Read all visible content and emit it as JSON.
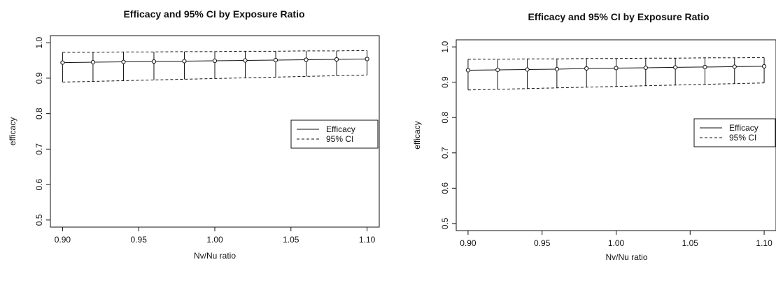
{
  "colors": {
    "ink": "#111111",
    "background": "#ffffff"
  },
  "chart_data": [
    {
      "type": "line",
      "title": "Efficacy and 95% CI by Exposure Ratio",
      "xlabel": "Nv/Nu ratio",
      "ylabel": "efficacy",
      "xlim": [
        0.9,
        1.1
      ],
      "ylim": [
        0.5,
        1.0
      ],
      "xticks": [
        "0.90",
        "0.95",
        "1.00",
        "1.05",
        "1.10"
      ],
      "yticks": [
        "0.5",
        "0.6",
        "0.7",
        "0.8",
        "0.9",
        "1.0"
      ],
      "x": [
        0.9,
        0.92,
        0.94,
        0.96,
        0.98,
        1.0,
        1.02,
        1.04,
        1.06,
        1.08,
        1.1
      ],
      "series": [
        {
          "name": "Efficacy",
          "style": "solid",
          "markers": true,
          "values": [
            0.944,
            0.945,
            0.946,
            0.947,
            0.948,
            0.949,
            0.95,
            0.951,
            0.952,
            0.953,
            0.954
          ]
        },
        {
          "name": "95% CI",
          "style": "dashed",
          "band": "upper",
          "values": [
            0.973,
            0.973,
            0.974,
            0.974,
            0.975,
            0.975,
            0.976,
            0.976,
            0.977,
            0.977,
            0.978
          ]
        },
        {
          "name": "95% CI",
          "style": "dashed",
          "band": "lower",
          "values": [
            0.889,
            0.891,
            0.893,
            0.895,
            0.897,
            0.899,
            0.901,
            0.903,
            0.905,
            0.907,
            0.909
          ]
        }
      ],
      "legend": {
        "position": "right",
        "entries": [
          {
            "label": "Efficacy",
            "style": "solid"
          },
          {
            "label": "95% CI",
            "style": "dashed"
          }
        ]
      }
    },
    {
      "type": "line",
      "title": "Efficacy and 95% CI by Exposure Ratio",
      "xlabel": "Nv/Nu ratio",
      "ylabel": "efficacy",
      "xlim": [
        0.9,
        1.1
      ],
      "ylim": [
        0.5,
        1.0
      ],
      "xticks": [
        "0.90",
        "0.95",
        "1.00",
        "1.05",
        "1.10"
      ],
      "yticks": [
        "0.5",
        "0.6",
        "0.7",
        "0.8",
        "0.9",
        "1.0"
      ],
      "x": [
        0.9,
        0.92,
        0.94,
        0.96,
        0.98,
        1.0,
        1.02,
        1.04,
        1.06,
        1.08,
        1.1
      ],
      "series": [
        {
          "name": "Efficacy",
          "style": "solid",
          "markers": true,
          "values": [
            0.934,
            0.935,
            0.936,
            0.937,
            0.939,
            0.94,
            0.941,
            0.942,
            0.943,
            0.944,
            0.945
          ]
        },
        {
          "name": "95% CI",
          "style": "dashed",
          "band": "upper",
          "values": [
            0.965,
            0.965,
            0.966,
            0.966,
            0.967,
            0.967,
            0.968,
            0.968,
            0.969,
            0.969,
            0.97
          ]
        },
        {
          "name": "95% CI",
          "style": "dashed",
          "band": "lower",
          "values": [
            0.878,
            0.88,
            0.882,
            0.884,
            0.886,
            0.888,
            0.89,
            0.892,
            0.894,
            0.896,
            0.898
          ]
        }
      ],
      "legend": {
        "position": "right",
        "entries": [
          {
            "label": "Efficacy",
            "style": "solid"
          },
          {
            "label": "95% CI",
            "style": "dashed"
          }
        ]
      }
    }
  ]
}
